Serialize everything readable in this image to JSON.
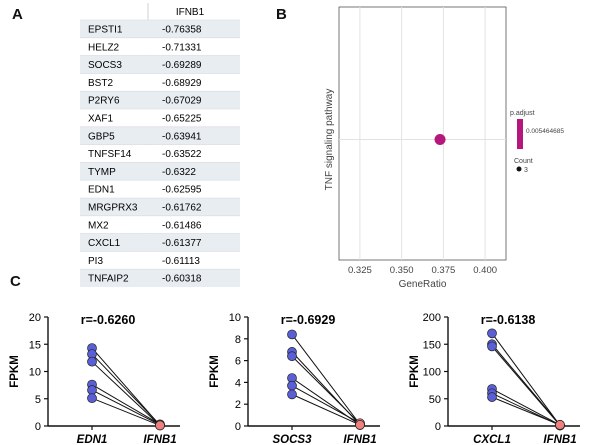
{
  "panels": {
    "a": "A",
    "b": "B",
    "c": "C"
  },
  "chart_data": [
    {
      "type": "table",
      "column_header": "IFNB1",
      "rows": [
        {
          "gene": "EPSTI1",
          "value": "-0.76358"
        },
        {
          "gene": "HELZ2",
          "value": "-0.71331"
        },
        {
          "gene": "SOCS3",
          "value": "-0.69289"
        },
        {
          "gene": "BST2",
          "value": "-0.68929"
        },
        {
          "gene": "P2RY6",
          "value": "-0.67029"
        },
        {
          "gene": "XAF1",
          "value": "-0.65225"
        },
        {
          "gene": "GBP5",
          "value": "-0.63941"
        },
        {
          "gene": "TNFSF14",
          "value": "-0.63522"
        },
        {
          "gene": "TYMP",
          "value": "-0.6322"
        },
        {
          "gene": "EDN1",
          "value": "-0.62595"
        },
        {
          "gene": "MRGPRX3",
          "value": "-0.61762"
        },
        {
          "gene": "MX2",
          "value": "-0.61486"
        },
        {
          "gene": "CXCL1",
          "value": "-0.61377"
        },
        {
          "gene": "PI3",
          "value": "-0.61113"
        },
        {
          "gene": "TNFAIP2",
          "value": "-0.60318"
        }
      ]
    },
    {
      "type": "scatter",
      "xlabel": "GeneRatio",
      "ylabel": "TNF signaling pathway",
      "xlim": [
        0.3125,
        0.4125
      ],
      "xticks": [
        "0.325",
        "0.350",
        "0.375",
        "0.400"
      ],
      "points": [
        {
          "x": 0.373,
          "y": "TNF signaling pathway",
          "count": 3,
          "p_adjust": 0.005464685
        }
      ],
      "legend": {
        "color_title": "p.adjust",
        "color_value": "0.005464685",
        "size_title": "Count",
        "size_value": "3"
      },
      "point_color": "#b5177c"
    },
    {
      "type": "line",
      "title": "r=-0.6260",
      "ylabel": "FPKM",
      "categories": [
        "EDN1",
        "IFNB1"
      ],
      "ylim": [
        0,
        20
      ],
      "yticks": [
        "0",
        "5",
        "10",
        "15",
        "20"
      ],
      "pairs": [
        [
          14.3,
          0.1
        ],
        [
          13.2,
          0.2
        ],
        [
          11.8,
          0.1
        ],
        [
          7.6,
          0.3
        ],
        [
          6.6,
          0.2
        ],
        [
          5.1,
          0.1
        ]
      ]
    },
    {
      "type": "line",
      "title": "r=-0.6929",
      "ylabel": "FPKM",
      "categories": [
        "SOCS3",
        "IFNB1"
      ],
      "ylim": [
        0,
        10
      ],
      "yticks": [
        "0",
        "2",
        "4",
        "6",
        "8",
        "10"
      ],
      "pairs": [
        [
          8.4,
          0.15
        ],
        [
          6.8,
          0.1
        ],
        [
          6.4,
          0.2
        ],
        [
          4.4,
          0.1
        ],
        [
          3.7,
          0.25
        ],
        [
          2.9,
          0.1
        ]
      ]
    },
    {
      "type": "line",
      "title": "r=-0.6138",
      "ylabel": "FPKM",
      "categories": [
        "CXCL1",
        "IFNB1"
      ],
      "ylim": [
        0,
        200
      ],
      "yticks": [
        "0",
        "50",
        "100",
        "150",
        "200"
      ],
      "pairs": [
        [
          170,
          1
        ],
        [
          150,
          2
        ],
        [
          146,
          1
        ],
        [
          68,
          2
        ],
        [
          60,
          1
        ],
        [
          53,
          2
        ]
      ]
    }
  ],
  "colors": {
    "dot_a": "#5a5fd6",
    "dot_b": "#f08080",
    "magenta": "#b5177c"
  }
}
